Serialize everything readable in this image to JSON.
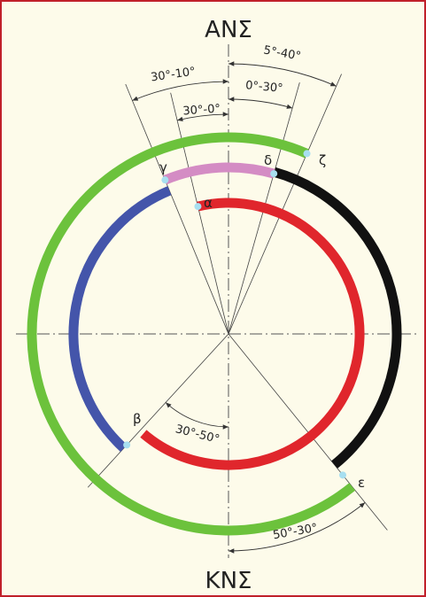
{
  "header": {
    "top_label": "ΑΝΣ",
    "bottom_label": "ΚΝΣ"
  },
  "points": {
    "alpha": "α",
    "beta": "β",
    "gamma": "γ",
    "delta": "δ",
    "epsilon": "ε",
    "zeta": "ζ"
  },
  "angles": [
    "30°-10°",
    "0°-30°",
    "5°-40°",
    "30°-0°",
    "30°-50°",
    "50°-30°"
  ]
}
